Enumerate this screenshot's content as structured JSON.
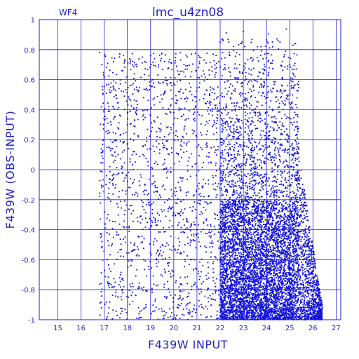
{
  "panel_label": "WF4",
  "chart_data": {
    "type": "scatter",
    "title": "lmc_u4zn08",
    "xlabel": "F439W INPUT",
    "ylabel": "F439W (OBS-INPUT)",
    "xlim": [
      14.2,
      27.2
    ],
    "ylim": [
      -1,
      1
    ],
    "x_ticks": [
      "15",
      "16",
      "17",
      "18",
      "19",
      "20",
      "21",
      "22",
      "23",
      "24",
      "25",
      "26",
      "27"
    ],
    "y_ticks": [
      "-1",
      "-0.8",
      "-0.6",
      "-0.4",
      "-0.2",
      "0",
      "0.2",
      "0.4",
      "0.6",
      "0.8",
      "1"
    ],
    "grid": true,
    "point_color": "#1111dd",
    "accent_color": "#ffee00",
    "axis_color": "#2222cc",
    "points": [
      [
        16.8,
        0.78
      ],
      [
        16.9,
        0.7
      ],
      [
        17.0,
        0.62
      ],
      [
        17.1,
        0.51
      ],
      [
        17.2,
        0.4
      ],
      [
        17.3,
        0.3
      ],
      [
        17.2,
        0.15
      ],
      [
        17.4,
        0.05
      ],
      [
        17.5,
        -0.1
      ],
      [
        17.6,
        -0.25
      ],
      [
        17.4,
        0.72
      ],
      [
        17.8,
        0.66
      ],
      [
        18.1,
        0.74
      ],
      [
        18.4,
        0.55
      ],
      [
        18.7,
        0.48
      ],
      [
        19.0,
        0.76
      ],
      [
        19.3,
        0.35
      ],
      [
        19.6,
        0.22
      ],
      [
        19.9,
        0.71
      ],
      [
        20.2,
        0.1
      ],
      [
        20.5,
        0.62
      ],
      [
        20.8,
        0.02
      ],
      [
        21.1,
        0.75
      ],
      [
        21.4,
        0.44
      ],
      [
        21.7,
        0.77
      ],
      [
        18.0,
        0.3
      ],
      [
        18.3,
        0.12
      ],
      [
        18.6,
        -0.05
      ],
      [
        18.9,
        -0.2
      ],
      [
        19.2,
        -0.35
      ],
      [
        19.5,
        -0.5
      ],
      [
        19.8,
        -0.62
      ],
      [
        20.1,
        -0.74
      ],
      [
        20.4,
        -0.86
      ],
      [
        20.7,
        -0.95
      ],
      [
        21.0,
        -0.4
      ],
      [
        21.3,
        -0.18
      ],
      [
        21.6,
        0.05
      ],
      [
        17.9,
        -0.45
      ],
      [
        18.2,
        -0.6
      ],
      [
        18.5,
        -0.78
      ],
      [
        18.8,
        -0.9
      ],
      [
        17.6,
        -0.55
      ],
      [
        17.7,
        -0.7
      ],
      [
        17.8,
        -0.82
      ],
      [
        17.9,
        -0.93
      ],
      [
        19.1,
        0.6
      ],
      [
        19.4,
        0.45
      ],
      [
        19.7,
        0.28
      ],
      [
        20.0,
        0.38
      ],
      [
        20.3,
        -0.28
      ],
      [
        20.6,
        -0.45
      ],
      [
        20.9,
        -0.6
      ],
      [
        21.2,
        -0.76
      ],
      [
        21.5,
        -0.88
      ],
      [
        21.8,
        -0.3
      ],
      [
        22.0,
        0.85
      ],
      [
        22.2,
        0.7
      ],
      [
        22.4,
        0.55
      ],
      [
        22.6,
        0.4
      ],
      [
        22.8,
        0.25
      ],
      [
        23.0,
        0.92
      ],
      [
        23.2,
        0.1
      ],
      [
        23.4,
        -0.05
      ],
      [
        23.6,
        0.82
      ],
      [
        23.8,
        -0.18
      ],
      [
        24.0,
        0.6
      ],
      [
        24.2,
        0.35
      ],
      [
        24.4,
        0.15
      ],
      [
        24.6,
        0.48
      ],
      [
        24.8,
        0.02
      ],
      [
        25.0,
        -0.1
      ],
      [
        22.1,
        -0.5
      ],
      [
        22.3,
        -0.65
      ],
      [
        22.5,
        -0.72
      ],
      [
        22.7,
        -0.8
      ],
      [
        22.9,
        -0.86
      ],
      [
        23.1,
        -0.92
      ],
      [
        23.3,
        -0.6
      ],
      [
        23.5,
        -0.7
      ],
      [
        23.7,
        -0.78
      ],
      [
        23.9,
        -0.84
      ],
      [
        24.1,
        -0.9
      ],
      [
        24.3,
        -0.95
      ],
      [
        24.5,
        -0.55
      ],
      [
        24.7,
        -0.62
      ],
      [
        24.9,
        -0.75
      ],
      [
        25.1,
        -0.82
      ],
      [
        25.3,
        -0.88
      ],
      [
        25.5,
        -0.93
      ],
      [
        25.7,
        -0.7
      ],
      [
        25.9,
        -0.8
      ],
      [
        26.1,
        -0.9
      ],
      [
        26.3,
        -0.96
      ],
      [
        25.2,
        -0.4
      ],
      [
        25.4,
        -0.5
      ],
      [
        25.6,
        -0.6
      ],
      [
        24.6,
        -0.3
      ],
      [
        23.0,
        -0.4
      ],
      [
        22.6,
        -0.35
      ]
    ],
    "band_edge": [
      [
        21.8,
        -1.0
      ],
      [
        22.0,
        -0.8
      ],
      [
        22.4,
        -0.6
      ],
      [
        23.0,
        -0.45
      ],
      [
        23.6,
        -0.3
      ],
      [
        24.2,
        -0.15
      ],
      [
        24.6,
        0.0
      ],
      [
        25.0,
        0.2
      ],
      [
        25.2,
        0.4
      ],
      [
        25.3,
        0.6
      ],
      [
        25.4,
        0.9
      ]
    ],
    "right_edge": [
      [
        25.3,
        0.6
      ],
      [
        25.6,
        -0.2
      ],
      [
        26.0,
        -0.55
      ],
      [
        26.3,
        -0.85
      ],
      [
        26.5,
        -1.0
      ]
    ]
  }
}
